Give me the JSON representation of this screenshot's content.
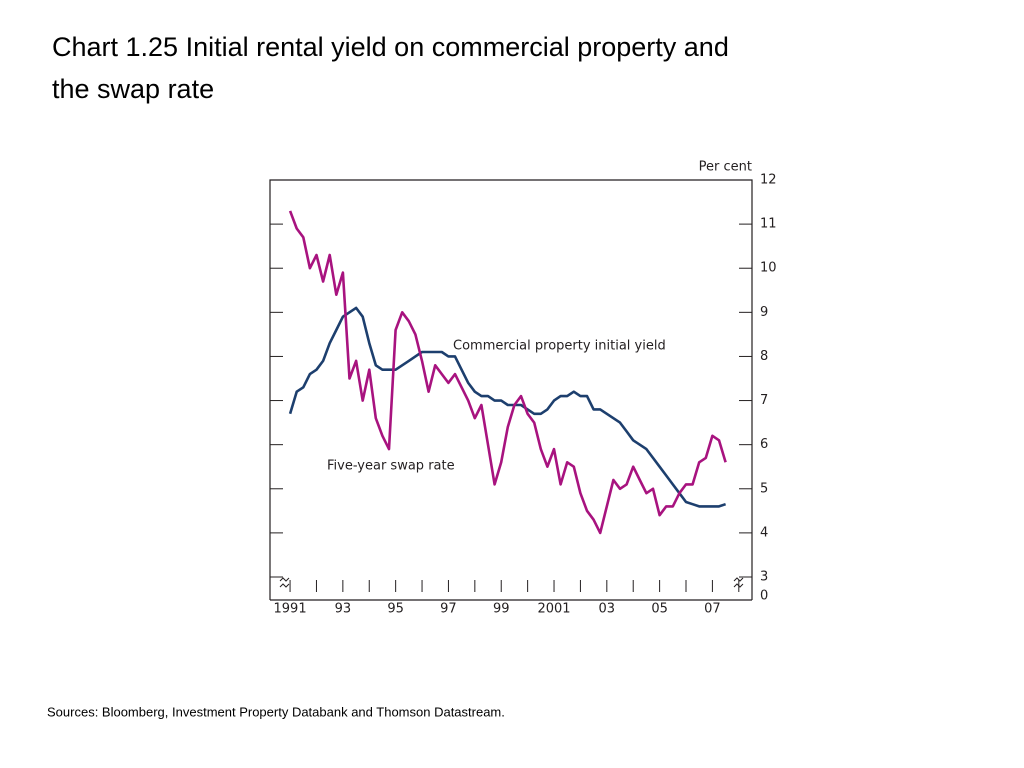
{
  "chart_data": {
    "type": "line",
    "title_line1": "Chart 1.25  Initial rental yield on commercial property and",
    "title_line2": "the swap rate",
    "y_unit": "Per cent",
    "source": "Sources:  Bloomberg, Investment Property Databank and Thomson Datastream.",
    "annotations": [
      "Commercial property initial yield",
      "Five-year swap rate"
    ],
    "x": [
      1991,
      1991.25,
      1991.5,
      1991.75,
      1992,
      1992.25,
      1992.5,
      1992.75,
      1993,
      1993.25,
      1993.5,
      1993.75,
      1994,
      1994.25,
      1994.5,
      1994.75,
      1995,
      1995.25,
      1995.5,
      1995.75,
      1996,
      1996.25,
      1996.5,
      1996.75,
      1997,
      1997.25,
      1997.5,
      1997.75,
      1998,
      1998.25,
      1998.5,
      1998.75,
      1999,
      1999.25,
      1999.5,
      1999.75,
      2000,
      2000.25,
      2000.5,
      2000.75,
      2001,
      2001.25,
      2001.5,
      2001.75,
      2002,
      2002.25,
      2002.5,
      2002.75,
      2003,
      2003.25,
      2003.5,
      2003.75,
      2004,
      2004.25,
      2004.5,
      2004.75,
      2005,
      2005.25,
      2005.5,
      2005.75,
      2006,
      2006.25,
      2006.5,
      2006.75,
      2007,
      2007.25,
      2007.5
    ],
    "series": [
      {
        "name": "Commercial property initial yield",
        "color": "#1d3f6e",
        "values": [
          6.7,
          7.2,
          7.3,
          7.6,
          7.7,
          7.9,
          8.3,
          8.6,
          8.9,
          9.0,
          9.1,
          8.9,
          8.3,
          7.8,
          7.7,
          7.7,
          7.7,
          7.8,
          7.9,
          8.0,
          8.1,
          8.1,
          8.1,
          8.1,
          8.0,
          8.0,
          7.7,
          7.4,
          7.2,
          7.1,
          7.1,
          7.0,
          7.0,
          6.9,
          6.9,
          6.9,
          6.8,
          6.7,
          6.7,
          6.8,
          7.0,
          7.1,
          7.1,
          7.2,
          7.1,
          7.1,
          6.8,
          6.8,
          6.7,
          6.6,
          6.5,
          6.3,
          6.1,
          6.0,
          5.9,
          5.7,
          5.5,
          5.3,
          5.1,
          4.9,
          4.7,
          4.65,
          4.6,
          4.6,
          4.6,
          4.6,
          4.65
        ]
      },
      {
        "name": "Five-year swap rate",
        "color": "#a8137f",
        "values": [
          11.3,
          10.9,
          10.7,
          10.0,
          10.3,
          9.7,
          10.3,
          9.4,
          9.9,
          7.5,
          7.9,
          7.0,
          7.7,
          6.6,
          6.2,
          5.9,
          8.6,
          9.0,
          8.8,
          8.5,
          7.9,
          7.2,
          7.8,
          7.6,
          7.4,
          7.6,
          7.3,
          7.0,
          6.6,
          6.9,
          6.0,
          5.1,
          5.6,
          6.4,
          6.9,
          7.1,
          6.7,
          6.5,
          5.9,
          5.5,
          5.9,
          5.1,
          5.6,
          5.5,
          4.9,
          4.5,
          4.3,
          4.0,
          4.6,
          5.2,
          5.0,
          5.1,
          5.5,
          5.2,
          4.9,
          5.0,
          4.4,
          4.6,
          4.6,
          4.9,
          5.1,
          5.1,
          5.6,
          5.7,
          6.2,
          6.1,
          5.6
        ]
      }
    ],
    "xlim": [
      1990.24,
      2008.5
    ],
    "xticks": [
      1991,
      {
        "value": 1993,
        "label": "93"
      },
      {
        "value": 1995,
        "label": "95"
      },
      {
        "value": 1997,
        "label": "97"
      },
      {
        "value": 1999,
        "label": "99"
      },
      2001,
      {
        "value": 2003,
        "label": "03"
      },
      {
        "value": 2005,
        "label": "05"
      },
      {
        "value": 2007,
        "label": "07"
      }
    ],
    "xminor": [
      1992,
      1994,
      1996,
      1998,
      2000,
      2002,
      2004,
      2006,
      2008
    ],
    "ylim": [
      3,
      12
    ],
    "yticks": [
      3,
      4,
      5,
      6,
      7,
      8,
      9,
      10,
      11,
      12
    ],
    "ybreak": 0
  }
}
